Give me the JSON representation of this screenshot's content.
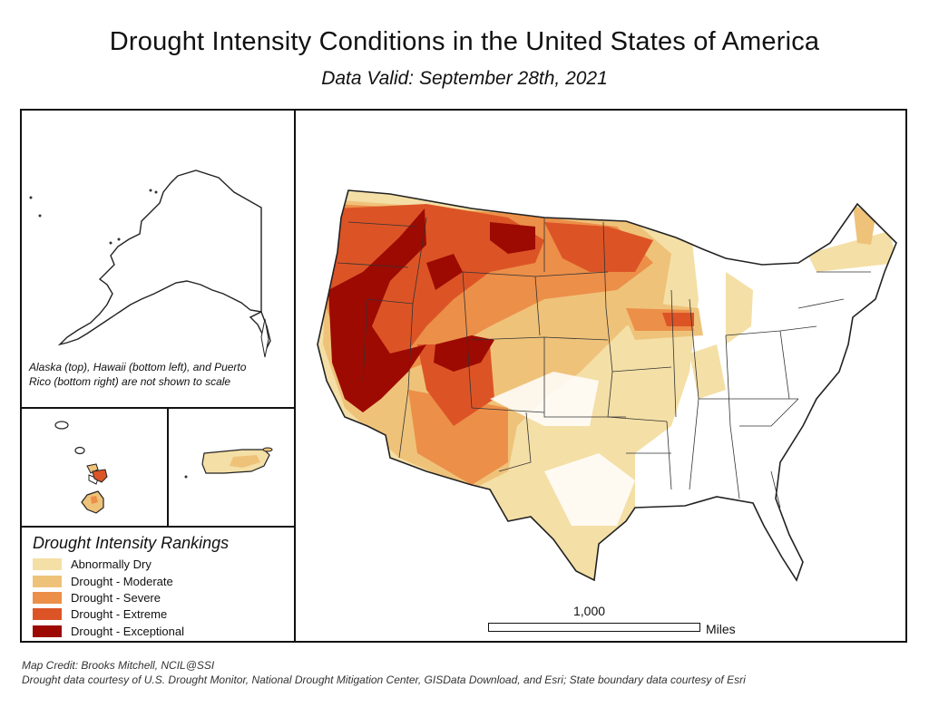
{
  "header": {
    "title": "Drought Intensity Conditions in the United States of America",
    "subtitle": "Data Valid: September 28th, 2021"
  },
  "inset_note": "Alaska (top), Hawaii (bottom left), and Puerto Rico (bottom right) are not shown to scale",
  "legend": {
    "title": "Drought Intensity Rankings",
    "items": [
      {
        "label": "Abnormally Dry",
        "color": "#f4dfa6"
      },
      {
        "label": "Drought - Moderate",
        "color": "#efc27a"
      },
      {
        "label": "Drought - Severe",
        "color": "#ec8f49"
      },
      {
        "label": "Drought - Extreme",
        "color": "#dc5426"
      },
      {
        "label": "Drought - Exceptional",
        "color": "#9d0a02"
      }
    ]
  },
  "scale_bar": {
    "value": "1,000",
    "unit": "Miles"
  },
  "credits": {
    "line1": "Map Credit: Brooks Mitchell, NCIL@SSI",
    "line2": "Drought data courtesy of U.S. Drought Monitor, National Drought Mitigation Center, GISData Download, and Esri; State boundary data courtesy of Esri"
  },
  "colors": {
    "frame": "#111111",
    "land": "#ffffff",
    "border": "#222222"
  }
}
